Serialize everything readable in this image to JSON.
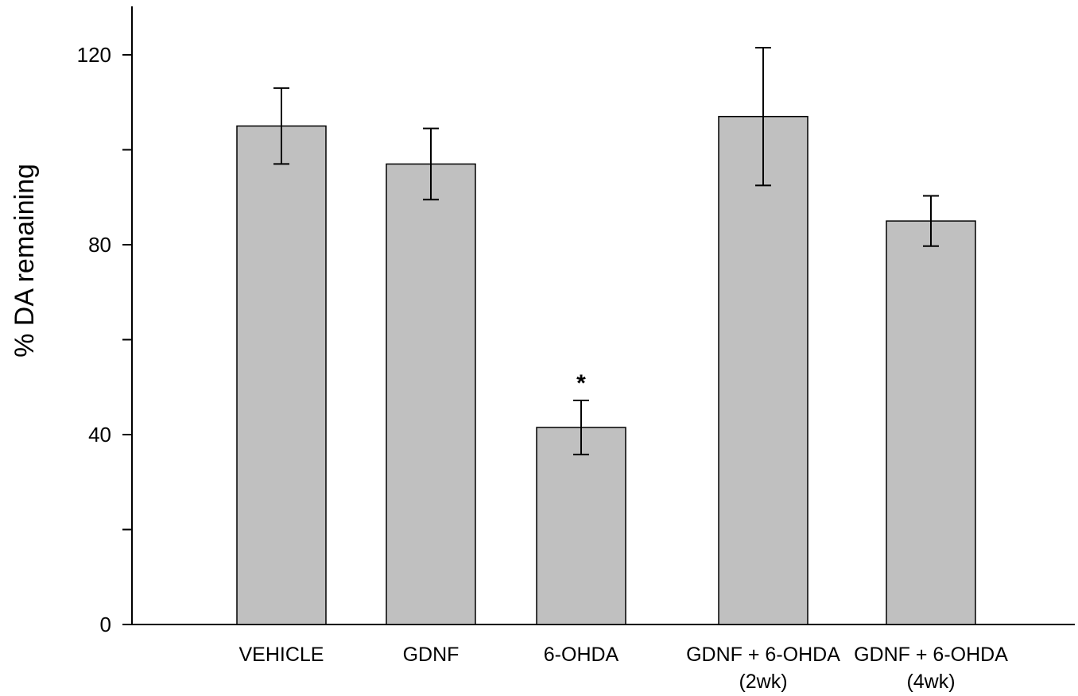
{
  "chart_data": {
    "type": "bar",
    "title": "",
    "xlabel": "",
    "ylabel": "% DA remaining",
    "ylim": [
      0,
      130
    ],
    "yticks_labeled": [
      0,
      40,
      80,
      120
    ],
    "yticks_minor": [
      20,
      60,
      100
    ],
    "grid": false,
    "legend": "none",
    "bar_color": "#c0c0c0",
    "edge_color": "#000000",
    "categories": [
      [
        "VEHICLE"
      ],
      [
        "GDNF"
      ],
      [
        "6-OHDA"
      ],
      [
        "GDNF + 6-OHDA",
        "(2wk)"
      ],
      [
        "GDNF + 6-OHDA",
        "(4wk)"
      ]
    ],
    "series": [
      {
        "values": [
          105,
          97,
          41.5,
          107,
          85
        ],
        "error": [
          8,
          7.5,
          5.7,
          14.5,
          5.3
        ]
      }
    ],
    "annotations": [
      {
        "category_index": 2,
        "text": "*"
      }
    ]
  }
}
